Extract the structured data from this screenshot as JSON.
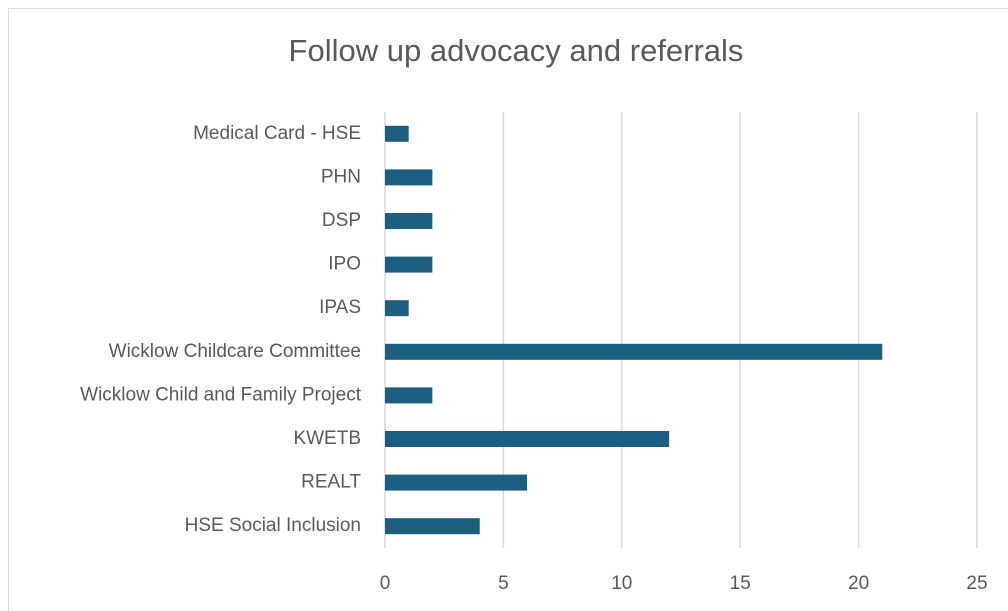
{
  "chart_data": {
    "type": "bar",
    "orientation": "horizontal",
    "title": "Follow up advocacy and referrals",
    "categories": [
      "Medical Card - HSE",
      "PHN",
      "DSP",
      "IPO",
      "IPAS",
      "Wicklow Childcare Committee",
      "Wicklow Child and Family Project",
      "KWETB",
      "REALT",
      "HSE Social Inclusion"
    ],
    "values": [
      1,
      2,
      2,
      2,
      1,
      21,
      2,
      12,
      6,
      4
    ],
    "color": "#1b5e80",
    "xlim": [
      0,
      25
    ],
    "xticks": [
      0,
      5,
      10,
      15,
      20,
      25
    ],
    "grid": true
  }
}
